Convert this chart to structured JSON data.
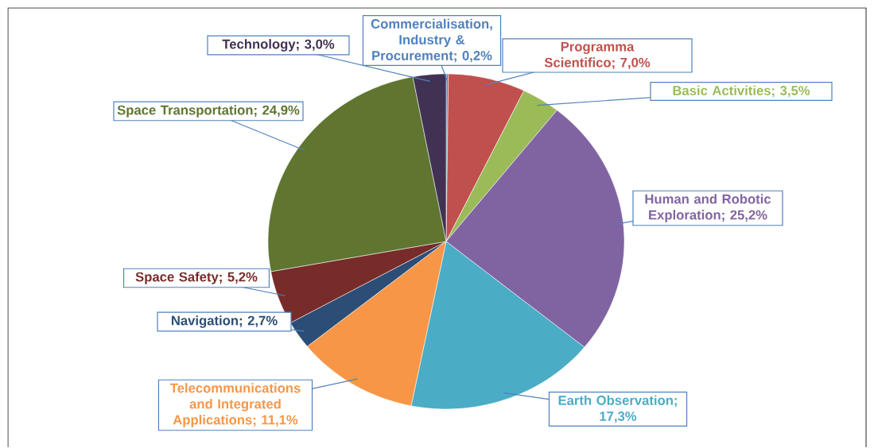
{
  "chart_data": {
    "type": "pie",
    "categories": [
      "Commercialisation, Industry & Procurement",
      "Programma Scientifico",
      "Basic Activities",
      "Human and Robotic Exploration",
      "Earth Observation",
      "Telecommunications and Integrated Applications",
      "Navigation",
      "Space Safety",
      "Space Transportation",
      "Technology"
    ],
    "values": [
      0.2,
      7.0,
      3.5,
      25.2,
      17.3,
      11.1,
      2.7,
      5.2,
      24.9,
      3.0
    ],
    "value_labels": [
      "; 0,2%",
      "; 7,0%",
      "; 3,5%",
      "; 25,2%",
      "; 17,3%",
      "; 11,1%",
      "; 2,7%",
      "; 5,2%",
      "; 24,9%",
      "; 3,0%"
    ],
    "colors": [
      "#4f81bd",
      "#c0504d",
      "#9bbb59",
      "#8064a2",
      "#4bacc6",
      "#f79646",
      "#2c4d75",
      "#772c2a",
      "#5f7530",
      "#413253"
    ]
  }
}
